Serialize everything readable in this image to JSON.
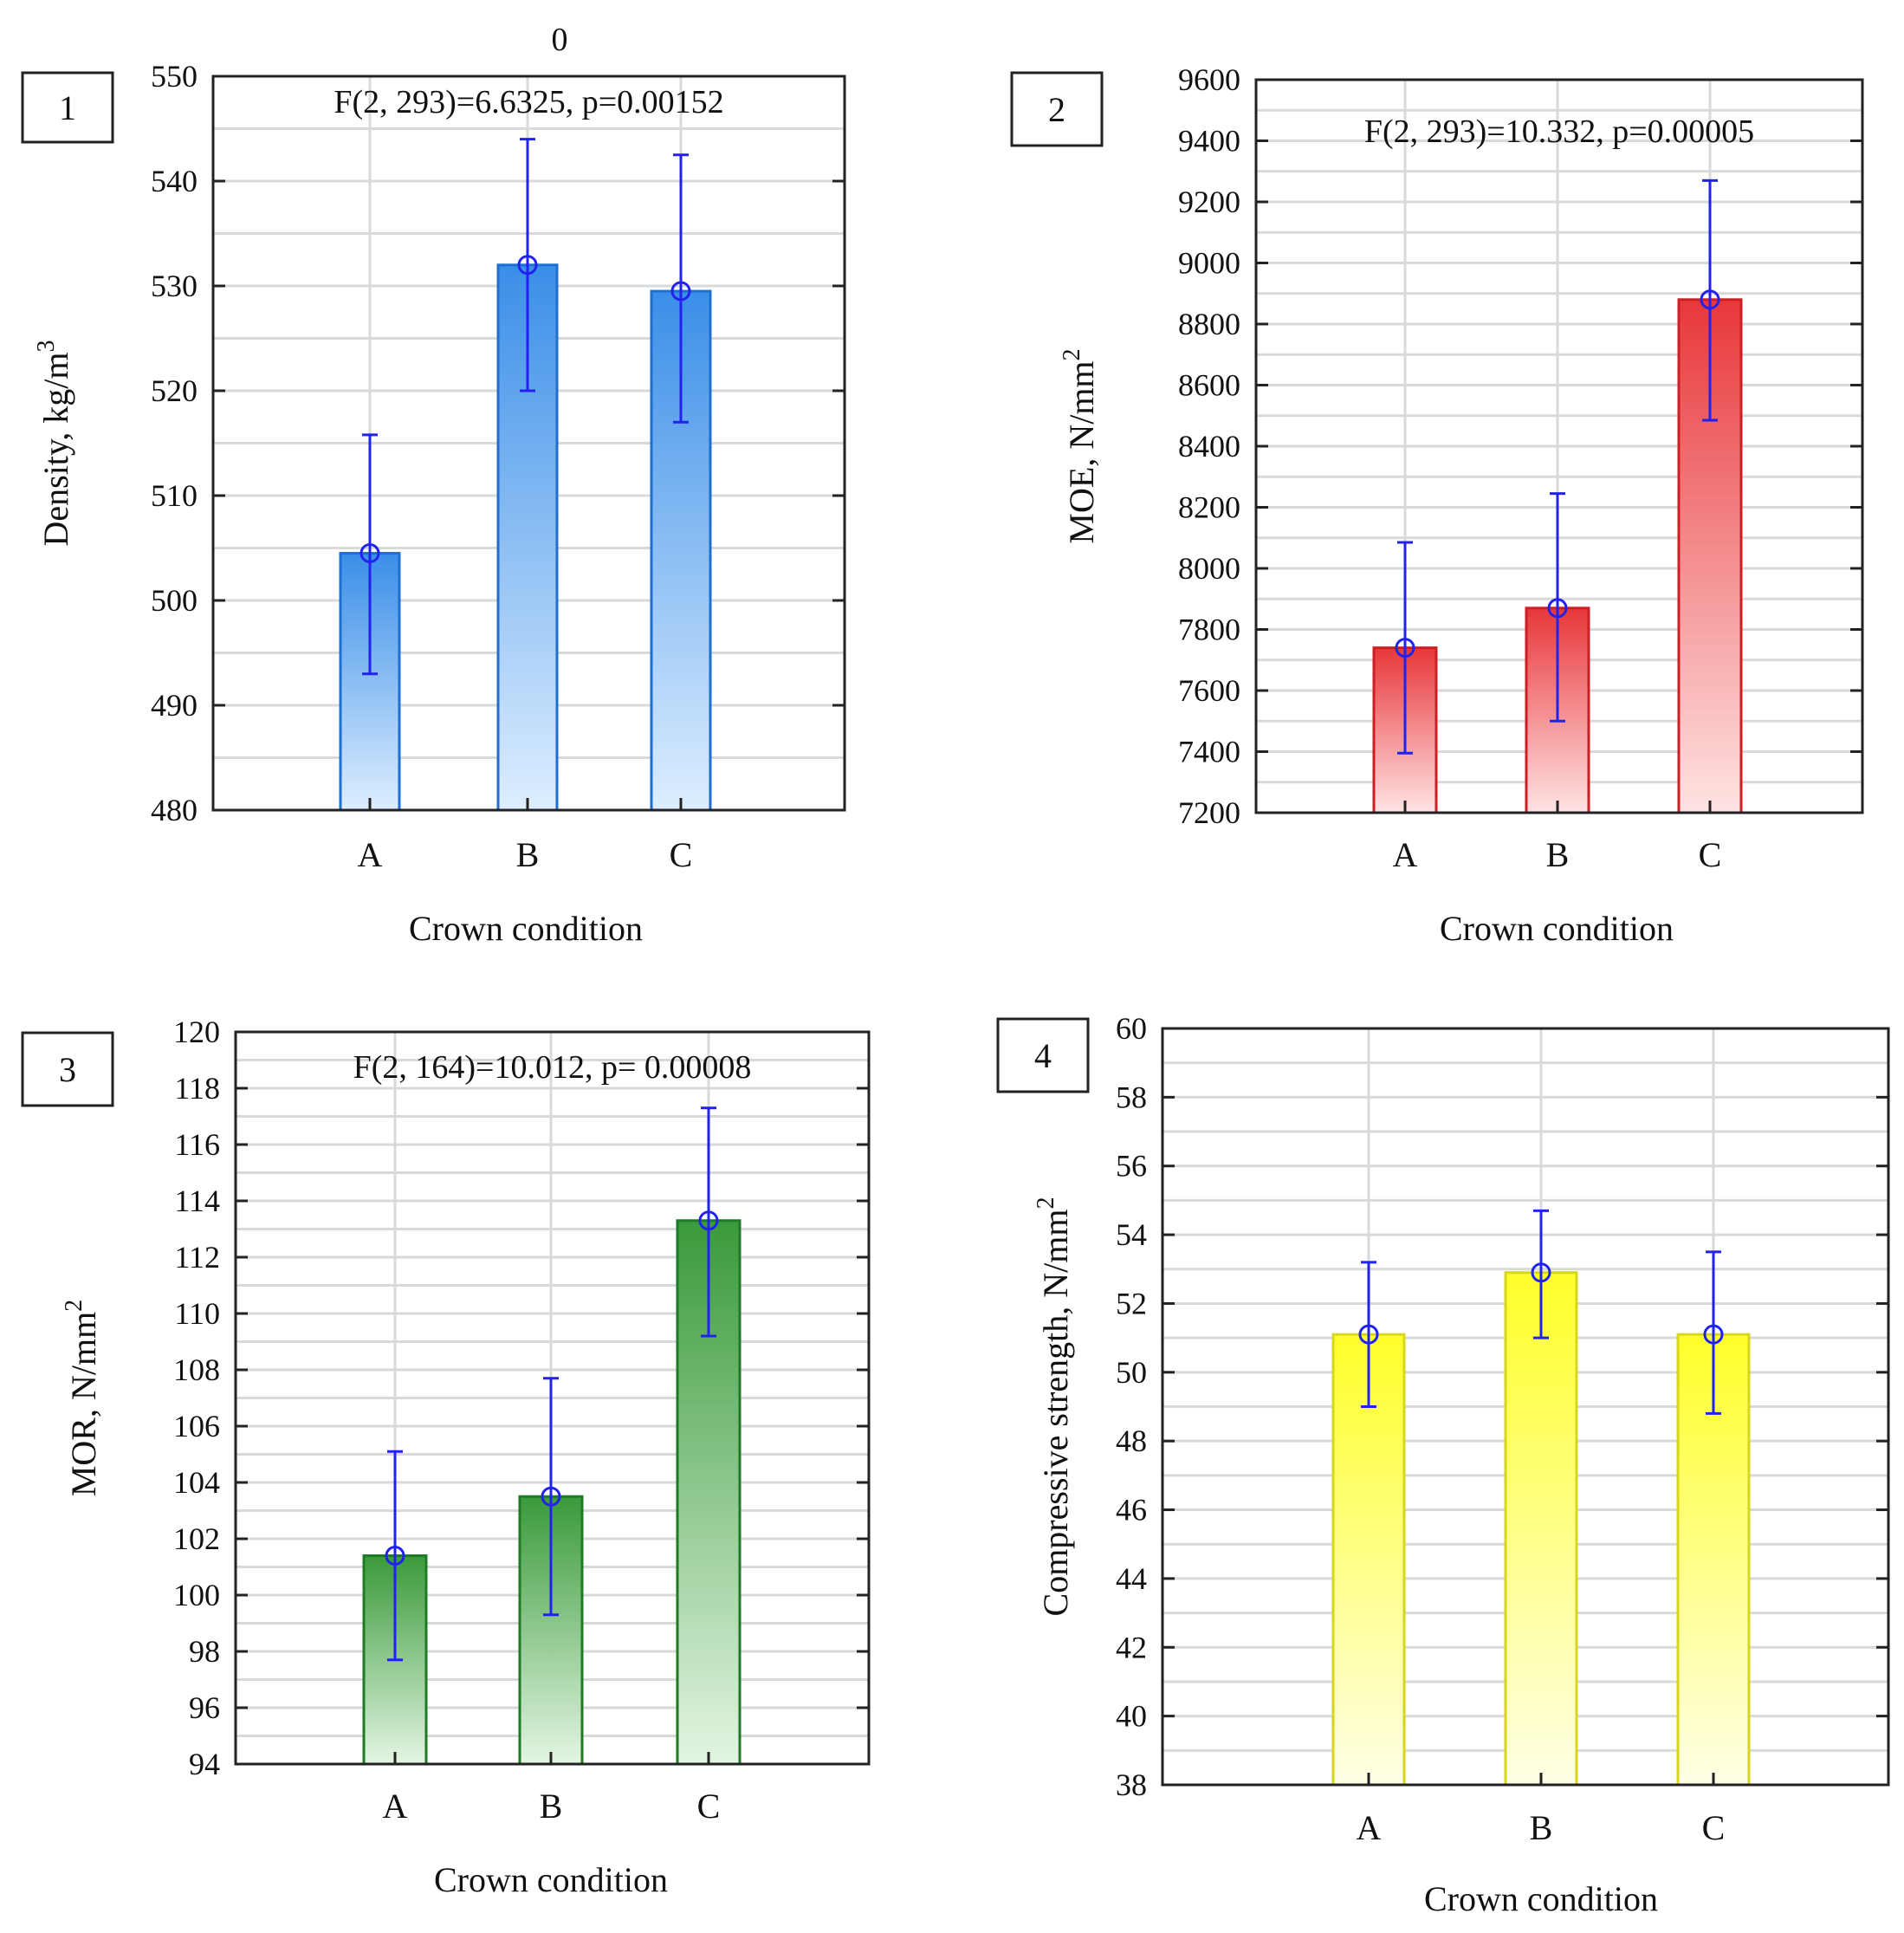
{
  "chart_data": [
    {
      "type": "bar",
      "panel": "1",
      "title": "0",
      "annotation": "F(2, 293)=6.6325, p=0.00152",
      "xlabel": "Crown condition",
      "ylabel": "Density, kg/m",
      "ylabel_sup": "3",
      "categories": [
        "A",
        "B",
        "C"
      ],
      "values": [
        504.5,
        532,
        529.5
      ],
      "error_low": [
        493,
        520,
        517
      ],
      "error_high": [
        515.8,
        544,
        542.5
      ],
      "ylim": [
        480,
        550
      ],
      "yticks": [
        480,
        490,
        500,
        510,
        520,
        530,
        540,
        550
      ],
      "color": "#3a8ee8",
      "color_light": "#ddeeff",
      "color_stroke": "#1f6fd0"
    },
    {
      "type": "bar",
      "panel": "2",
      "title": "",
      "annotation": "F(2, 293)=10.332, p=0.00005",
      "xlabel": "Crown condition",
      "ylabel": "MOE, N/mm",
      "ylabel_sup": "2",
      "categories": [
        "A",
        "B",
        "C"
      ],
      "values": [
        7740,
        7870,
        8880
      ],
      "error_low": [
        7395,
        7500,
        8485
      ],
      "error_high": [
        8085,
        8245,
        9270
      ],
      "ylim": [
        7200,
        9600
      ],
      "yticks": [
        7200,
        7400,
        7600,
        7800,
        8000,
        8200,
        8400,
        8600,
        8800,
        9000,
        9200,
        9400,
        9600
      ],
      "color": "#e8373a",
      "color_light": "#ffe3e3",
      "color_stroke": "#cc1f25"
    },
    {
      "type": "bar",
      "panel": "3",
      "title": "",
      "annotation": "F(2, 164)=10.012, p= 0.00008",
      "xlabel": "Crown condition",
      "ylabel": "MOR, N/mm",
      "ylabel_sup": "2",
      "categories": [
        "A",
        "B",
        "C"
      ],
      "values": [
        101.4,
        103.5,
        113.3
      ],
      "error_low": [
        97.7,
        99.3,
        109.2
      ],
      "error_high": [
        105.1,
        107.7,
        117.3
      ],
      "ylim": [
        94,
        120
      ],
      "yticks": [
        94,
        96,
        98,
        100,
        102,
        104,
        106,
        108,
        110,
        112,
        114,
        116,
        118,
        120
      ],
      "color": "#3a9a3a",
      "color_light": "#e3f5e3",
      "color_stroke": "#1f7a26"
    },
    {
      "type": "bar",
      "panel": "4",
      "title": "",
      "annotation": "",
      "xlabel": "Crown condition",
      "ylabel": "Compressive strength, N/mm",
      "ylabel_sup": "2",
      "categories": [
        "A",
        "B",
        "C"
      ],
      "values": [
        51.1,
        52.9,
        51.1
      ],
      "error_low": [
        49.0,
        51.0,
        48.8
      ],
      "error_high": [
        53.2,
        54.7,
        53.5
      ],
      "ylim": [
        38,
        60
      ],
      "yticks": [
        38,
        40,
        42,
        44,
        46,
        48,
        50,
        52,
        54,
        56,
        58,
        60
      ],
      "color": "#ffff2a",
      "color_light": "#ffffe6",
      "color_stroke": "#d6d61a"
    }
  ]
}
